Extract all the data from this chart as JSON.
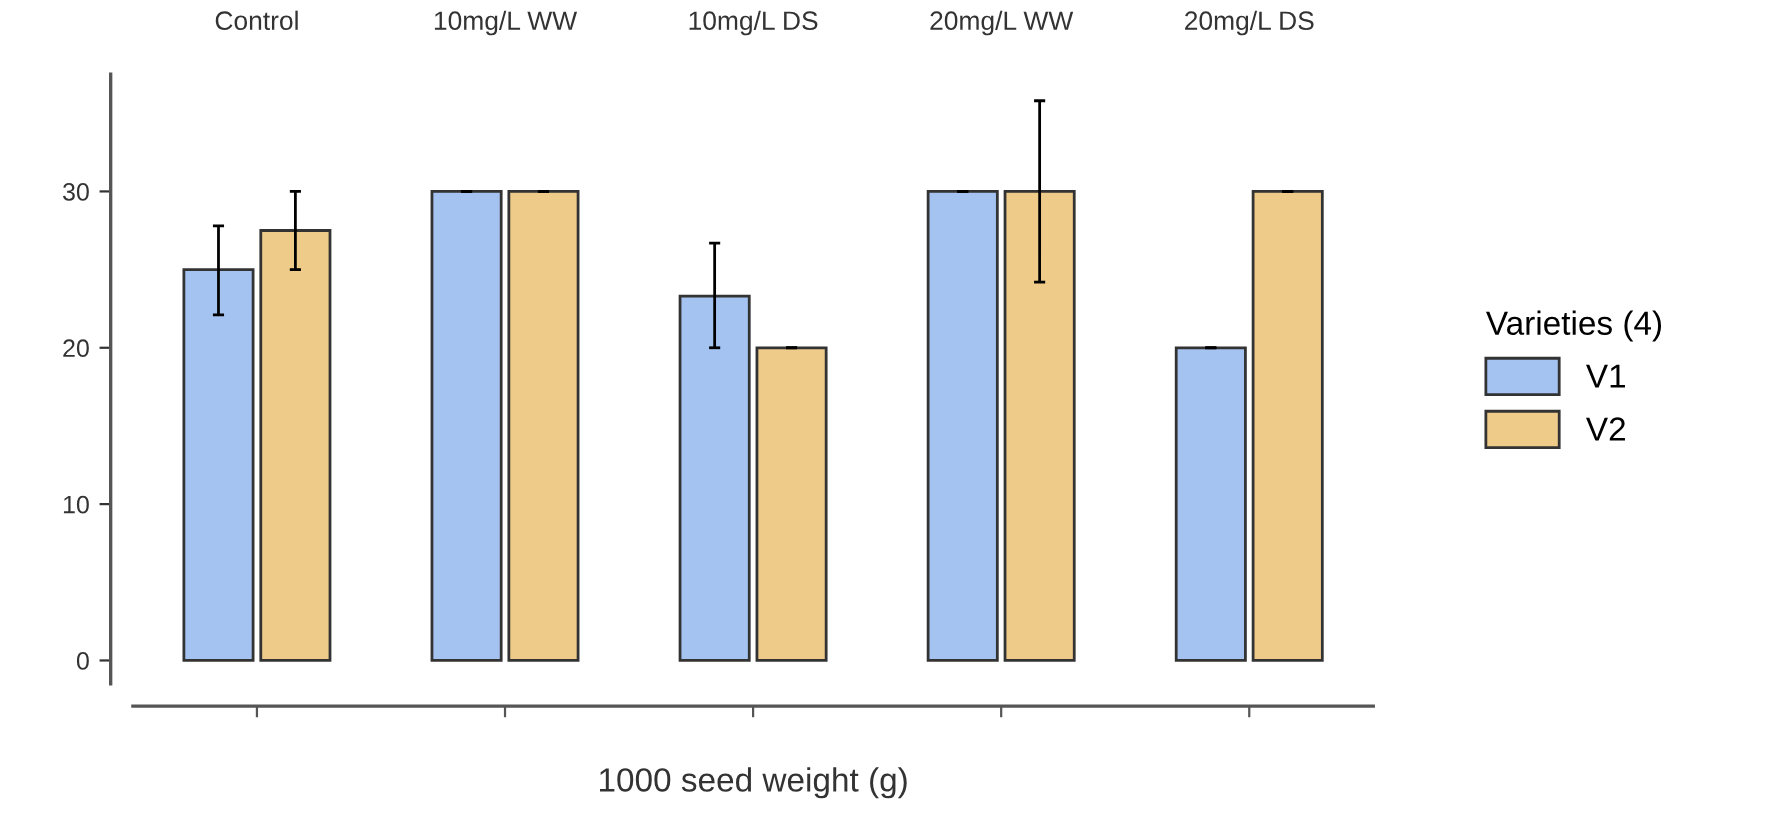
{
  "chart_data": {
    "type": "bar",
    "xlabel": "1000 seed weight (g)",
    "legend_title": "Varieties (4)",
    "categories": [
      "Control",
      "10mg/L WW",
      "10mg/L DS",
      "20mg/L WW",
      "20mg/L DS"
    ],
    "ylim": [
      -1.5,
      37.5
    ],
    "yticks": [
      0,
      10,
      20,
      30
    ],
    "grid": false,
    "legend": "right",
    "series": [
      {
        "name": "V1",
        "color": "#a4c3f0",
        "values": [
          25,
          30,
          23.3,
          30,
          20
        ],
        "errors": [
          [
            22.1,
            27.8
          ],
          0,
          [
            20,
            26.7
          ],
          0,
          0
        ]
      },
      {
        "name": "V2",
        "color": "#efcb8a",
        "values": [
          27.5,
          30,
          20,
          30,
          30
        ],
        "errors": [
          [
            25,
            30
          ],
          0,
          0,
          [
            24.2,
            35.8
          ],
          0
        ]
      }
    ]
  }
}
